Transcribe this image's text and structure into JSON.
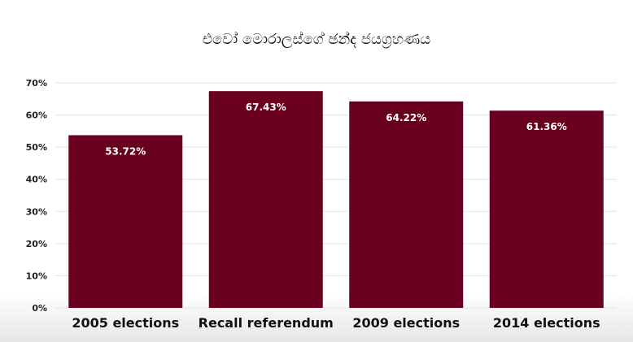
{
  "chart_data": {
    "type": "bar",
    "title": "එවෝ මොරාලස්ගේ ඡන්ද ජයග්‍රහණය",
    "categories": [
      "2005 elections",
      "Recall referendum",
      "2009 elections",
      "2014 elections"
    ],
    "values": [
      53.72,
      67.43,
      64.22,
      61.36
    ],
    "data_labels": [
      "53.72%",
      "67.43%",
      "64.22%",
      "61.36%"
    ],
    "ylim": [
      0,
      70
    ],
    "yticks": [
      "0%",
      "10%",
      "20%",
      "30%",
      "40%",
      "50%",
      "60%",
      "70%"
    ],
    "bar_color": "#6a0020",
    "grid": true
  }
}
